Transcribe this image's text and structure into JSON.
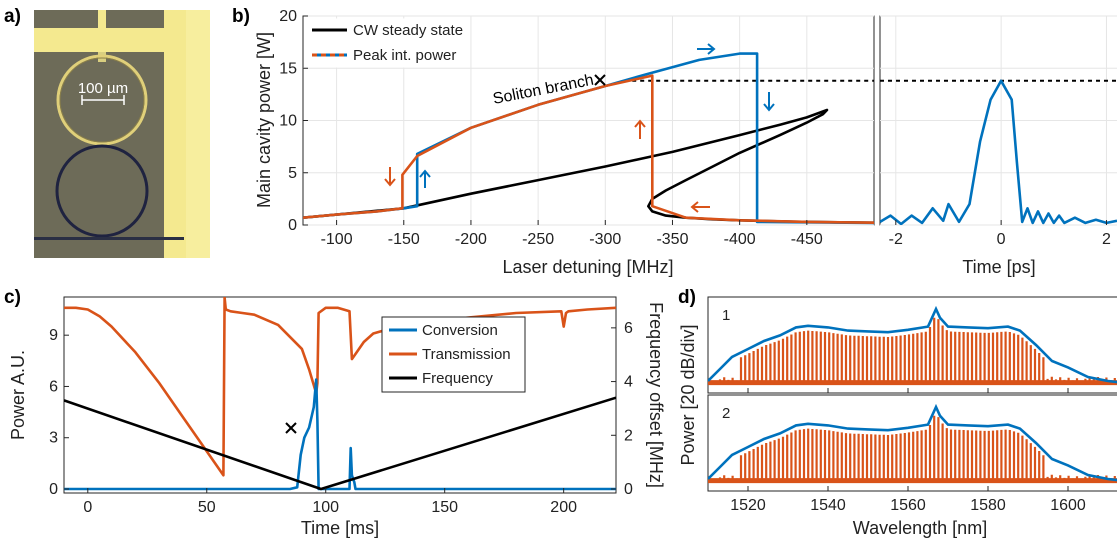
{
  "colors": {
    "blue": "#0072bd",
    "orange": "#d95319",
    "black": "#000000",
    "chip_bg": "#6f6d5a",
    "gold": "#f2e58c",
    "gridline": "#e6e6e6"
  },
  "panels": {
    "a": "a)",
    "b": "b)",
    "c": "c)",
    "d": "d)"
  },
  "panel_a": {
    "scalebar_label": "100 µm"
  },
  "chart_data": [
    {
      "id": "b_main",
      "type": "line",
      "ylabel": "Main cavity power [W]",
      "xlabel": "Laser detuning [MHz]",
      "xlim": [
        -75,
        -500
      ],
      "ylim": [
        0,
        20
      ],
      "xticks": [
        -100,
        -150,
        -200,
        -250,
        -300,
        -350,
        -400,
        -450
      ],
      "xtick_labels": [
        "-100",
        "-150",
        "-200",
        "-250",
        "-300",
        "-350",
        "-400",
        "-450"
      ],
      "yticks": [
        0,
        5,
        10,
        15,
        20
      ],
      "ytick_labels": [
        "0",
        "5",
        "10",
        "15",
        "20"
      ],
      "legend": [
        "CW steady state",
        "Peak int. power"
      ],
      "annotation": "Soliton branch",
      "series": [
        {
          "name": "CW steady state",
          "color": "black",
          "x": [
            -75,
            -100,
            -150,
            -200,
            -250,
            -300,
            -350,
            -400,
            -430,
            -450,
            -465,
            -462,
            -450,
            -430,
            -400,
            -380,
            -360,
            -345,
            -335,
            -332,
            -335,
            -345,
            -360,
            -380,
            -400,
            -420,
            -440,
            -460,
            -480,
            -500
          ],
          "y": [
            0.7,
            1.0,
            1.6,
            3.0,
            4.3,
            5.6,
            7.0,
            8.6,
            9.6,
            10.3,
            11.0,
            10.6,
            9.8,
            8.6,
            6.9,
            5.6,
            4.3,
            3.3,
            2.5,
            1.8,
            1.3,
            0.9,
            0.7,
            0.55,
            0.45,
            0.38,
            0.32,
            0.28,
            0.25,
            0.22
          ]
        },
        {
          "name": "Peak int. power",
          "color": "blue",
          "x": [
            -75,
            -100,
            -130,
            -150,
            -160,
            -160,
            -200,
            -250,
            -300,
            -330,
            -370,
            -400,
            -413,
            -413,
            -500
          ],
          "y": [
            0.7,
            1.0,
            1.3,
            1.6,
            1.8,
            6.8,
            9.3,
            11.5,
            13.3,
            14.4,
            15.8,
            16.4,
            16.4,
            0.3,
            0.2
          ]
        },
        {
          "name": "Peak int. power dashed",
          "color": "orange",
          "x": [
            -75,
            -100,
            -130,
            -149,
            -149,
            -160,
            -200,
            -250,
            -300,
            -335,
            -335,
            -360,
            -400,
            -450,
            -500
          ],
          "y": [
            0.7,
            1.0,
            1.3,
            1.6,
            4.8,
            6.6,
            9.3,
            11.5,
            13.3,
            14.3,
            1.8,
            0.7,
            0.45,
            0.3,
            0.22
          ]
        },
        {
          "name": "soliton level",
          "color": "black",
          "dash": true,
          "x": [
            -320,
            -500
          ],
          "y": [
            13.8,
            13.8
          ]
        }
      ]
    },
    {
      "id": "b_time",
      "type": "line",
      "xlabel": "Time [ps]",
      "xlim": [
        -2.3,
        2.2
      ],
      "ylim": [
        0,
        20
      ],
      "xticks": [
        -2,
        0,
        2
      ],
      "xtick_labels": [
        "-2",
        "0",
        "2"
      ],
      "series": [
        {
          "name": "pulse",
          "color": "blue",
          "x": [
            -2.3,
            -2.1,
            -1.9,
            -1.7,
            -1.5,
            -1.3,
            -1.1,
            -1.0,
            -0.8,
            -0.6,
            -0.4,
            -0.2,
            0,
            0.2,
            0.3,
            0.4,
            0.5,
            0.6,
            0.7,
            0.8,
            0.9,
            1.0,
            1.1,
            1.2,
            1.4,
            1.6,
            1.8,
            2.0,
            2.2
          ],
          "y": [
            0.3,
            0.9,
            0.1,
            0.9,
            0.2,
            1.6,
            0.4,
            2.0,
            0.3,
            2.0,
            8.0,
            12.0,
            13.8,
            12.0,
            6.0,
            0.3,
            1.6,
            0.2,
            1.3,
            0.2,
            1.1,
            0.2,
            0.9,
            0.2,
            0.7,
            0.2,
            0.5,
            0.2,
            0.4
          ]
        },
        {
          "name": "soliton level",
          "color": "black",
          "dash": true,
          "x": [
            -2.3,
            2.2
          ],
          "y": [
            13.8,
            13.8
          ]
        }
      ]
    },
    {
      "id": "c",
      "type": "line",
      "xlabel": "Time [ms]",
      "ylabel": "Power A.U.",
      "y2label": "Frequency offset [MHz]",
      "xlim": [
        -10,
        222
      ],
      "ylim": [
        0,
        11
      ],
      "y2lim": [
        0,
        7
      ],
      "xticks": [
        0,
        50,
        100,
        150,
        200
      ],
      "xtick_labels": [
        "0",
        "50",
        "100",
        "150",
        "200"
      ],
      "yticks": [
        0,
        3,
        6,
        9
      ],
      "ytick_labels": [
        "0",
        "3",
        "6",
        "9"
      ],
      "y2ticks": [
        0,
        2,
        4,
        6
      ],
      "y2tick_labels": [
        "0",
        "2",
        "4",
        "6"
      ],
      "legend": [
        "Conversion",
        "Transmission",
        "Frequency"
      ],
      "series": [
        {
          "name": "Transmission",
          "color": "orange",
          "x": [
            -10,
            -5,
            0,
            5,
            10,
            20,
            30,
            40,
            50,
            57,
            57.5,
            58,
            60,
            65,
            70,
            80,
            90,
            93,
            96,
            96.5,
            97,
            100,
            105,
            110,
            111,
            113,
            116,
            120,
            130,
            150,
            180,
            199,
            200,
            201,
            202,
            210,
            222
          ],
          "y": [
            10.6,
            10.6,
            10.5,
            10.1,
            9.5,
            8.0,
            6.2,
            4.2,
            2.2,
            0.8,
            11.2,
            10.5,
            10.4,
            10.3,
            10.2,
            9.6,
            8.2,
            7.0,
            5.6,
            6.2,
            10.3,
            10.6,
            10.6,
            10.4,
            7.6,
            8.0,
            8.6,
            9.1,
            9.5,
            9.9,
            10.3,
            10.4,
            9.5,
            10.3,
            10.4,
            10.5,
            10.6
          ]
        },
        {
          "name": "Conversion",
          "color": "blue",
          "x": [
            -10,
            85,
            88,
            89.5,
            91,
            93,
            95,
            96,
            96.5,
            97,
            110,
            110.5,
            111,
            112,
            112.5,
            222
          ],
          "y": [
            0,
            0,
            0.1,
            2.0,
            3.0,
            3.6,
            4.8,
            6.4,
            4.0,
            0,
            0,
            2.4,
            0.8,
            0.4,
            0,
            0
          ]
        },
        {
          "name": "Frequency",
          "color": "black",
          "axis": "y2",
          "x": [
            -10,
            98,
            222
          ],
          "y": [
            3.3,
            0,
            3.4
          ]
        }
      ],
      "marker": {
        "x": 92.5,
        "y": 3.4,
        "symbol": "x"
      }
    },
    {
      "id": "d",
      "type": "line",
      "xlabel": "Wavelength [nm]",
      "ylabel": "Power [20 dB/div]",
      "xlim": [
        1510,
        1615
      ],
      "xticks": [
        1520,
        1540,
        1560,
        1580,
        1600
      ],
      "xtick_labels": [
        "1520",
        "1540",
        "1560",
        "1580",
        "1600"
      ],
      "subplots": [
        "1",
        "2"
      ],
      "envelope": {
        "x": [
          1510,
          1513,
          1516,
          1520,
          1524,
          1528,
          1532,
          1535,
          1540,
          1545,
          1550,
          1555,
          1560,
          1565,
          1566,
          1567,
          1568,
          1570,
          1575,
          1580,
          1585,
          1588,
          1592,
          1596,
          1600,
          1605,
          1610,
          1615
        ],
        "y": [
          0.05,
          0.2,
          0.35,
          0.45,
          0.55,
          0.62,
          0.72,
          0.74,
          0.72,
          0.68,
          0.67,
          0.66,
          0.69,
          0.73,
          0.84,
          0.95,
          0.84,
          0.73,
          0.72,
          0.71,
          0.73,
          0.68,
          0.5,
          0.3,
          0.22,
          0.1,
          0.05,
          0.02
        ]
      }
    }
  ]
}
